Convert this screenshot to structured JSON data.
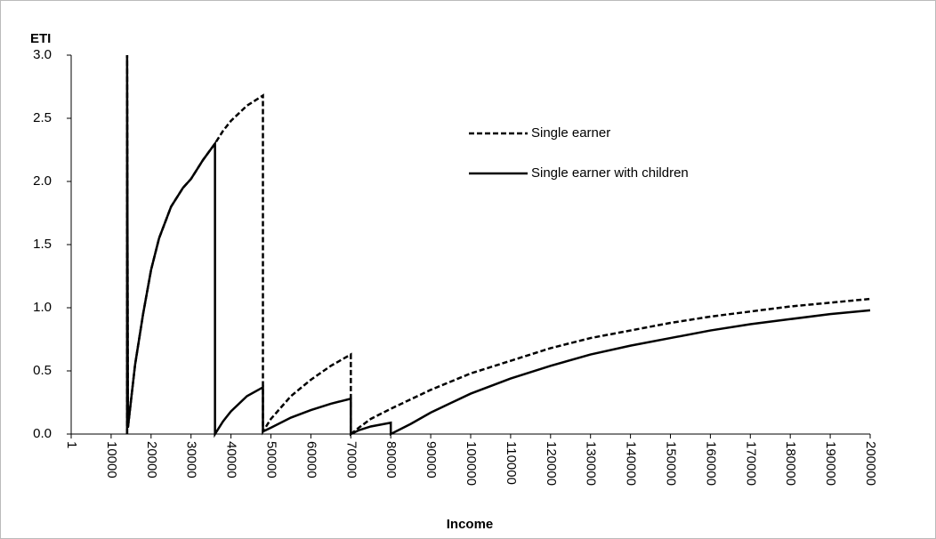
{
  "chart_data": {
    "type": "line",
    "y_label": "ETI",
    "x_label": "Income",
    "xlim": [
      1,
      200000
    ],
    "xticks": [
      1,
      10000,
      20000,
      30000,
      40000,
      50000,
      60000,
      70000,
      80000,
      90000,
      100000,
      110000,
      120000,
      130000,
      140000,
      150000,
      160000,
      170000,
      180000,
      190000,
      200000
    ],
    "ylim": [
      0,
      3
    ],
    "yticks": [
      {
        "value": 0,
        "label": "0.0"
      },
      {
        "value": 0.5,
        "label": "0.5"
      },
      {
        "value": 1,
        "label": "1.0"
      },
      {
        "value": 1.5,
        "label": "1.5"
      },
      {
        "value": 2,
        "label": "2.0"
      },
      {
        "value": 2.5,
        "label": "2.5"
      },
      {
        "value": 3,
        "label": "3.0"
      }
    ],
    "grid": false,
    "legend": "top",
    "series": [
      {
        "name": "Single earner",
        "color": "#000000",
        "dash": true,
        "x": [
          14000,
          14000,
          14200,
          16000,
          18000,
          20000,
          22000,
          25000,
          28000,
          30000,
          33000,
          36000,
          38000,
          40000,
          44000,
          48000,
          48000,
          50000,
          55000,
          60000,
          65000,
          70000,
          70000,
          72000,
          75000,
          80000,
          90000,
          100000,
          110000,
          120000,
          130000,
          140000,
          150000,
          160000,
          170000,
          180000,
          190000,
          200000
        ],
        "values": [
          0,
          3.0,
          0.05,
          0.55,
          0.95,
          1.3,
          1.55,
          1.8,
          1.95,
          2.02,
          2.17,
          2.3,
          2.4,
          2.48,
          2.6,
          2.68,
          0.02,
          0.12,
          0.3,
          0.43,
          0.54,
          0.63,
          0,
          0.05,
          0.12,
          0.2,
          0.35,
          0.48,
          0.58,
          0.68,
          0.76,
          0.82,
          0.88,
          0.93,
          0.97,
          1.01,
          1.04,
          1.07
        ]
      },
      {
        "name": "Single earner with children",
        "color": "#000000",
        "dash": false,
        "x": [
          14000,
          14000,
          14200,
          16000,
          18000,
          20000,
          22000,
          25000,
          28000,
          30000,
          33000,
          36000,
          36000,
          38000,
          40000,
          44000,
          48000,
          48000,
          50000,
          55000,
          60000,
          65000,
          70000,
          70000,
          72000,
          75000,
          80000,
          80000,
          85000,
          90000,
          100000,
          110000,
          120000,
          130000,
          140000,
          150000,
          160000,
          170000,
          180000,
          190000,
          200000
        ],
        "values": [
          0,
          3.0,
          0.05,
          0.55,
          0.95,
          1.3,
          1.55,
          1.8,
          1.95,
          2.02,
          2.17,
          2.3,
          0,
          0.1,
          0.18,
          0.3,
          0.37,
          0.02,
          0.05,
          0.13,
          0.19,
          0.24,
          0.28,
          0,
          0.03,
          0.06,
          0.09,
          0,
          0.08,
          0.17,
          0.32,
          0.44,
          0.54,
          0.63,
          0.7,
          0.76,
          0.82,
          0.87,
          0.91,
          0.95,
          0.98
        ]
      }
    ]
  }
}
